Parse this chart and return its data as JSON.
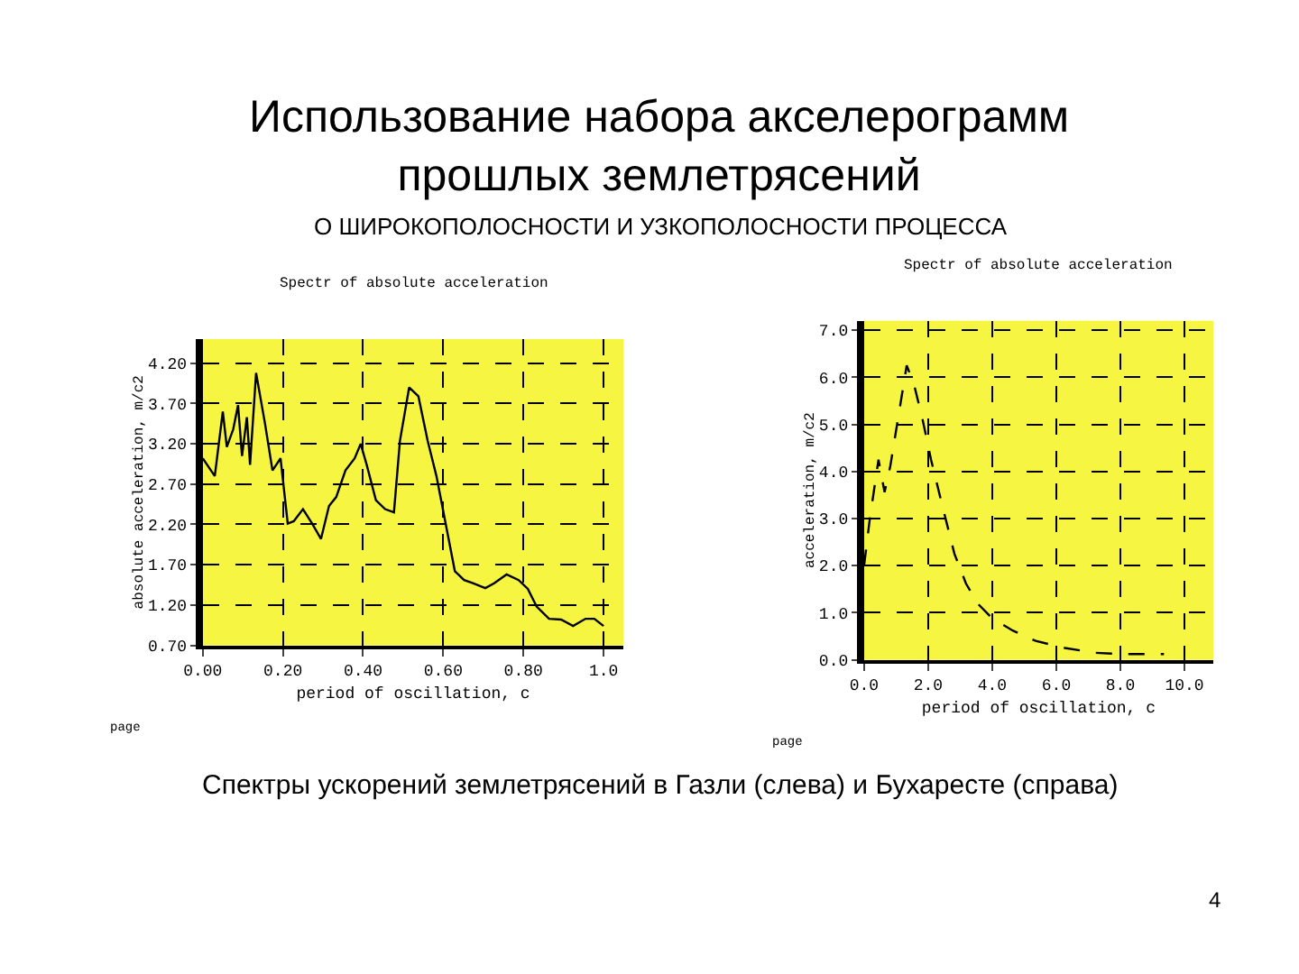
{
  "chart_data": [
    {
      "type": "other",
      "title": "Использование набора акселерограмм прошлых землетрясений",
      "subtitle": "О ШИРОКОПОЛОСНОСТИ И УЗКОПОЛОСНОСТИ ПРОЦЕССА",
      "annotations": [
        "Спектры ускорений землетрясений в Газли (слева) и Бухаресте (справа)",
        "4"
      ]
    },
    {
      "type": "line",
      "title": "Spectr of absolute acceleration",
      "xlabel": "period of oscillation, c",
      "ylabel": "absolute acceleration, m/c2",
      "annotations": [
        "page"
      ],
      "x": [
        0,
        0.03,
        0.05,
        0.06,
        0.076,
        0.088,
        0.098,
        0.11,
        0.118,
        0.133,
        0.155,
        0.174,
        0.194,
        0.212,
        0.227,
        0.25,
        0.273,
        0.295,
        0.315,
        0.333,
        0.356,
        0.379,
        0.394,
        0.409,
        0.432,
        0.455,
        0.477,
        0.492,
        0.515,
        0.538,
        0.561,
        0.583,
        0.606,
        0.629,
        0.652,
        0.674,
        0.705,
        0.727,
        0.758,
        0.788,
        0.811,
        0.833,
        0.864,
        0.894,
        0.924,
        0.955,
        0.977,
        1.0
      ],
      "values": [
        3.02,
        2.8,
        3.6,
        3.16,
        3.38,
        3.68,
        3.05,
        3.53,
        2.94,
        4.08,
        3.46,
        2.87,
        3.02,
        2.21,
        2.24,
        2.39,
        2.21,
        2.02,
        2.43,
        2.54,
        2.87,
        3.02,
        3.2,
        2.94,
        2.5,
        2.39,
        2.35,
        3.24,
        3.9,
        3.79,
        3.24,
        2.8,
        2.21,
        1.62,
        1.51,
        1.47,
        1.41,
        1.47,
        1.58,
        1.51,
        1.4,
        1.18,
        1.03,
        1.02,
        0.94,
        1.03,
        1.03,
        0.94
      ],
      "color": "#000000",
      "line_style": "solid",
      "marker": "none",
      "grid": true,
      "xlim": [
        0,
        1.05
      ],
      "ylim": [
        0.7,
        4.5
      ],
      "xticks": [
        {
          "value": 0,
          "label": "0.00"
        },
        {
          "value": 0.2,
          "label": "0.20"
        },
        {
          "value": 0.4,
          "label": "0.40"
        },
        {
          "value": 0.6,
          "label": "0.60"
        },
        {
          "value": 0.8,
          "label": "0.80"
        },
        {
          "value": 1.0,
          "label": "1.0"
        }
      ],
      "yticks": [
        {
          "value": 0.7,
          "label": "0.70"
        },
        {
          "value": 1.2,
          "label": "1.20"
        },
        {
          "value": 1.7,
          "label": "1.70"
        },
        {
          "value": 2.2,
          "label": "2.20"
        },
        {
          "value": 2.7,
          "label": "2.70"
        },
        {
          "value": 3.2,
          "label": "3.20"
        },
        {
          "value": 3.7,
          "label": "3.70"
        },
        {
          "value": 4.2,
          "label": "4.20"
        }
      ]
    },
    {
      "type": "line",
      "title": "Spectr of absolute acceleration",
      "xlabel": "period of oscillation, c",
      "ylabel": "acceleration, m/c2",
      "annotations": [
        "page"
      ],
      "x": [
        0,
        0.18,
        0.45,
        0.64,
        0.82,
        1.09,
        1.33,
        1.55,
        1.82,
        2.09,
        2.45,
        2.82,
        3.18,
        3.55,
        4.0,
        4.64,
        5.36,
        6.27,
        7.18,
        8.09,
        9.36
      ],
      "values": [
        2.0,
        3.0,
        4.25,
        3.56,
        4.12,
        5.25,
        6.25,
        5.87,
        5.12,
        4.25,
        3.25,
        2.25,
        1.62,
        1.19,
        0.88,
        0.62,
        0.4,
        0.25,
        0.15,
        0.12,
        0.12
      ],
      "color": "#000000",
      "line_style": "dashed",
      "marker": "none",
      "grid": true,
      "xlim": [
        0,
        10.9
      ],
      "ylim": [
        0,
        7.2
      ],
      "xticks": [
        {
          "value": 0,
          "label": "0.0"
        },
        {
          "value": 2,
          "label": "2.0"
        },
        {
          "value": 4,
          "label": "4.0"
        },
        {
          "value": 6,
          "label": "6.0"
        },
        {
          "value": 8,
          "label": "8.0"
        },
        {
          "value": 10,
          "label": "10.0"
        }
      ],
      "yticks": [
        {
          "value": 0,
          "label": "0.0"
        },
        {
          "value": 1,
          "label": "1.0"
        },
        {
          "value": 2,
          "label": "2.0"
        },
        {
          "value": 3,
          "label": "3.0"
        },
        {
          "value": 4,
          "label": "4.0"
        },
        {
          "value": 5,
          "label": "5.0"
        },
        {
          "value": 6,
          "label": "6.0"
        },
        {
          "value": 7,
          "label": "7.0"
        }
      ]
    }
  ]
}
